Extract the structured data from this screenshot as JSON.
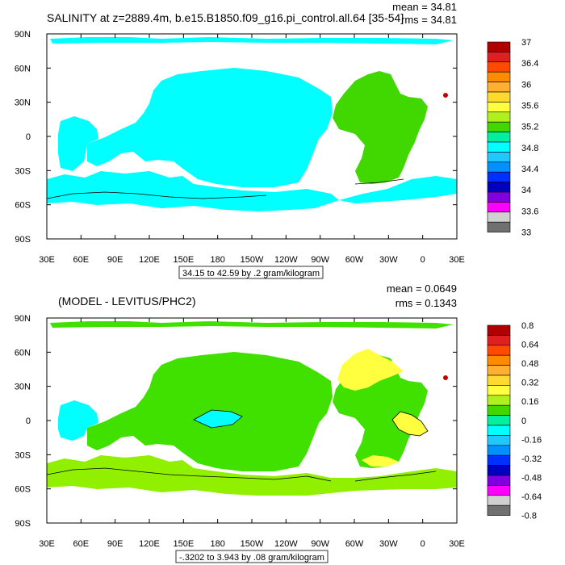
{
  "chart_data": [
    {
      "type": "heatmap",
      "title": "SALINITY at z=2889.4m, b.e15.B1850.f09_g16.pi_control.all.64 [35-54]",
      "mean_label": "mean = 34.81",
      "rms_label": "rms = 34.81",
      "range_label": "34.15 to 42.59 by .2 gram/kilogram",
      "x_ticks": [
        "30E",
        "60E",
        "90E",
        "120E",
        "150E",
        "180",
        "150W",
        "120W",
        "90W",
        "60W",
        "30W",
        "0",
        "30E"
      ],
      "y_ticks": [
        "90N",
        "60N",
        "30N",
        "0",
        "30S",
        "60S",
        "90S"
      ],
      "colorbar_labels": [
        "37",
        "36.4",
        "36",
        "35.6",
        "35.2",
        "34.8",
        "34.4",
        "34",
        "33.6",
        "33"
      ],
      "colorbar_colors": [
        "#b00000",
        "#e02020",
        "#ff4a00",
        "#ff8c00",
        "#ffb030",
        "#ffd830",
        "#ffff40",
        "#b0f020",
        "#40d800",
        "#00f0a0",
        "#00ffff",
        "#20c8ff",
        "#0090ff",
        "#0030ff",
        "#0000c0",
        "#8000e0",
        "#ff00ff",
        "#d0d0d0",
        "#707070"
      ],
      "regions": [
        {
          "name": "pacific-indian",
          "color": "#00ffff",
          "approx_value": 34.8
        },
        {
          "name": "atlantic",
          "color": "#40d800",
          "approx_value": 35.2
        },
        {
          "name": "mediterranean-spot",
          "color": "#c00000",
          "approx_value": 37
        }
      ]
    },
    {
      "type": "heatmap",
      "title": "(MODEL - LEVITUS/PHC2)",
      "mean_label": "mean = 0.0649",
      "rms_label": "rms = 0.1343",
      "range_label": "-.3202 to 3.943 by .08 gram/kilogram",
      "x_ticks": [
        "30E",
        "60E",
        "90E",
        "120E",
        "150E",
        "180",
        "150W",
        "120W",
        "90W",
        "60W",
        "30W",
        "0",
        "30E"
      ],
      "y_ticks": [
        "90N",
        "60N",
        "30N",
        "0",
        "30S",
        "60S",
        "90S"
      ],
      "colorbar_labels": [
        "0.8",
        "0.64",
        "0.48",
        "0.32",
        "0.16",
        "0",
        "-0.16",
        "-0.32",
        "-0.48",
        "-0.64",
        "-0.8"
      ],
      "colorbar_colors": [
        "#b00000",
        "#e02020",
        "#ff4a00",
        "#ff8c00",
        "#ffb030",
        "#ffd830",
        "#ffff40",
        "#b0f020",
        "#40d800",
        "#00f0a0",
        "#00ffff",
        "#20c8ff",
        "#0090ff",
        "#0030ff",
        "#0000c0",
        "#8000e0",
        "#ff00ff",
        "#d0d0d0",
        "#707070"
      ],
      "regions": [
        {
          "name": "global-ocean",
          "color": "#40e000",
          "approx_value": 0.16
        },
        {
          "name": "western-pacific",
          "color": "#00ffff",
          "approx_value": -0.05
        },
        {
          "name": "southern-ocean",
          "color": "#90f000",
          "approx_value": 0.2
        },
        {
          "name": "north-atlantic",
          "color": "#ffff40",
          "approx_value": 0.35
        },
        {
          "name": "mediterranean-spot",
          "color": "#c00000",
          "approx_value": 0.8
        }
      ]
    }
  ]
}
